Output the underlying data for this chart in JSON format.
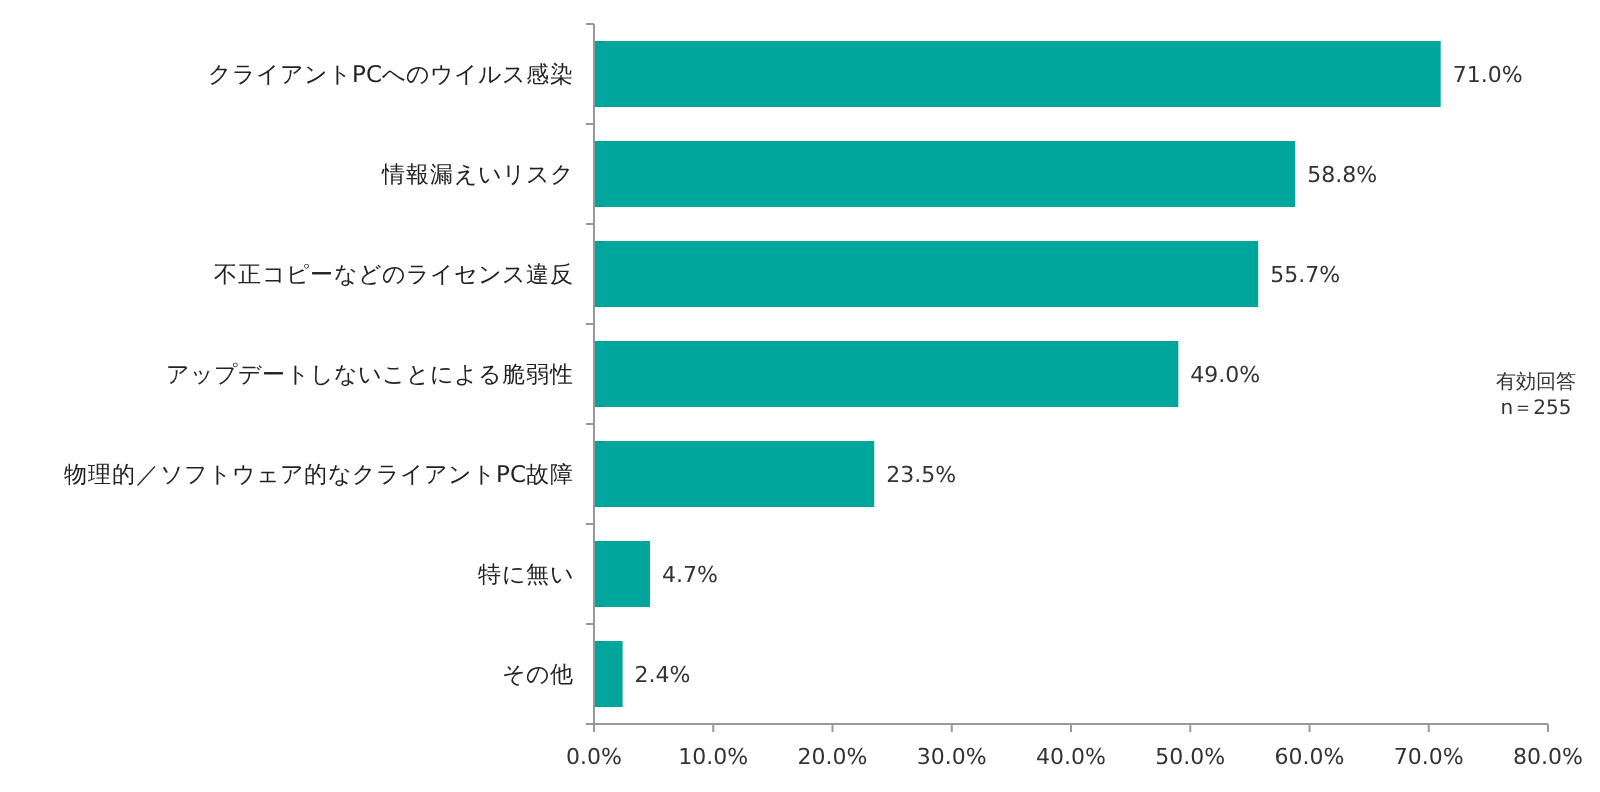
{
  "chart_data": {
    "type": "bar",
    "orientation": "horizontal",
    "categories": [
      "クライアントPCへのウイルス感染",
      "情報漏えいリスク",
      "不正コピーなどのライセンス違反",
      "アップデートしないことによる脆弱性",
      "物理的／ソフトウェア的なクライアントPC故障",
      "特に無い",
      "その他"
    ],
    "values": [
      71.0,
      58.8,
      55.7,
      49.0,
      23.5,
      4.7,
      2.4
    ],
    "value_labels": [
      "71.0%",
      "58.8%",
      "55.7%",
      "49.0%",
      "23.5%",
      "4.7%",
      "2.4%"
    ],
    "color": "#00a69c",
    "xlim": [
      0,
      80
    ],
    "xticks": [
      {
        "value": 0,
        "label": "0.0%"
      },
      {
        "value": 10,
        "label": "10.0%"
      },
      {
        "value": 20,
        "label": "20.0%"
      },
      {
        "value": 30,
        "label": "30.0%"
      },
      {
        "value": 40,
        "label": "40.0%"
      },
      {
        "value": 50,
        "label": "50.0%"
      },
      {
        "value": 60,
        "label": "60.0%"
      },
      {
        "value": 70,
        "label": "70.0%"
      },
      {
        "value": 80,
        "label": "80.0%"
      }
    ],
    "annotations": [
      "有効回答",
      "n＝255"
    ],
    "grid": false
  }
}
